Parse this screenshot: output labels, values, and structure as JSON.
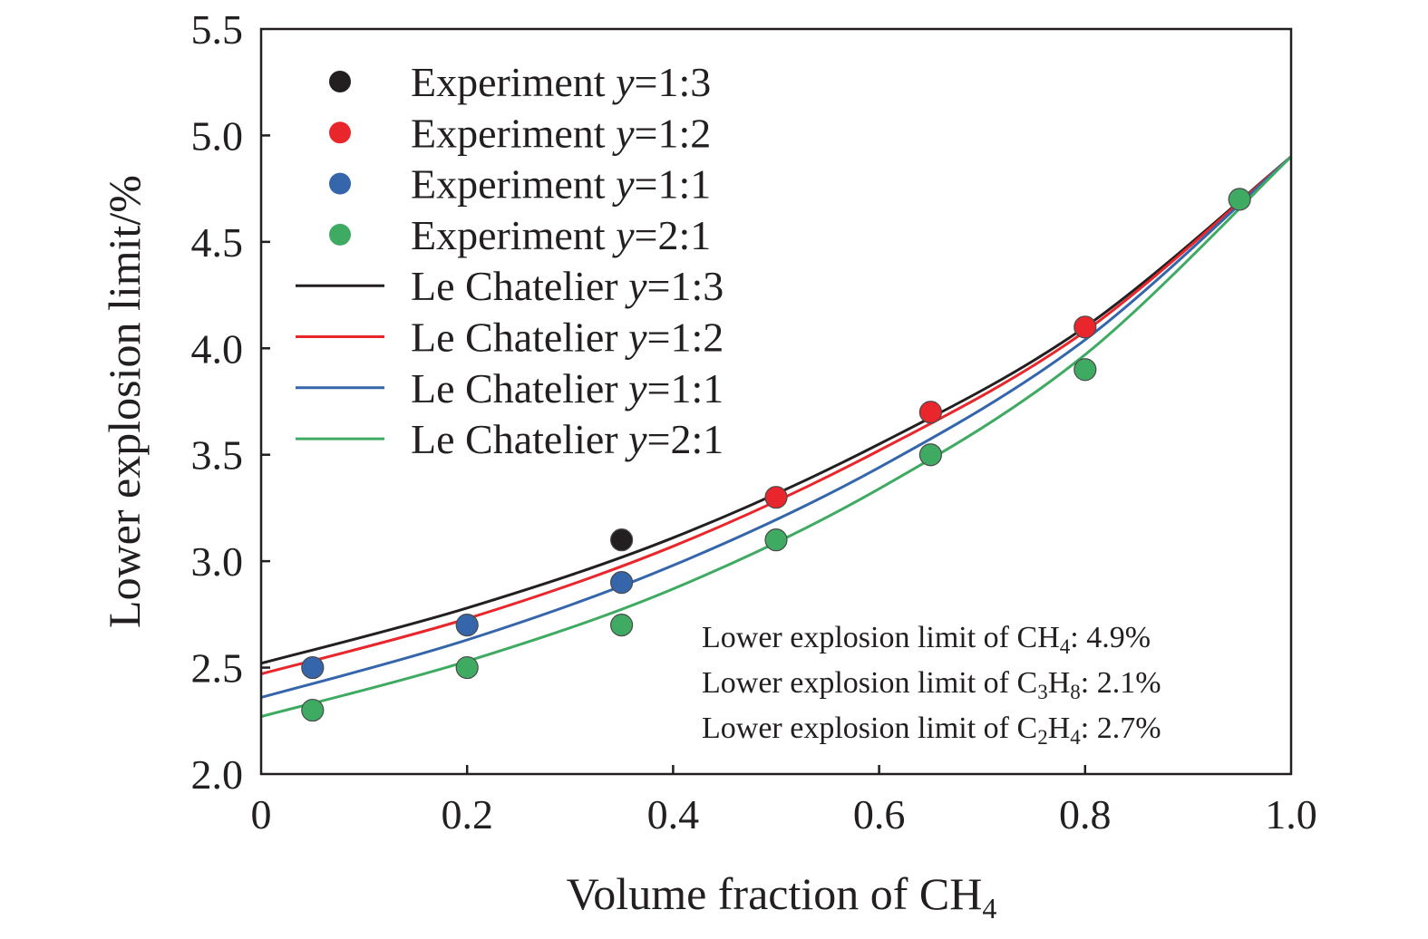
{
  "chart_data": {
    "type": "scatter",
    "xlabel": "Volume fraction of CH",
    "xlabel_sub": "4",
    "ylabel": "Lower explosion limit/%",
    "xlim": [
      0,
      1.0
    ],
    "ylim": [
      2.0,
      5.5
    ],
    "x_ticks": [
      {
        "value": 0,
        "label": "0"
      },
      {
        "value": 0.2,
        "label": "0.2"
      },
      {
        "value": 0.4,
        "label": "0.4"
      },
      {
        "value": 0.6,
        "label": "0.6"
      },
      {
        "value": 0.8,
        "label": "0.8"
      },
      {
        "value": 1.0,
        "label": "1.0"
      }
    ],
    "y_ticks": [
      {
        "value": 2.0,
        "label": "2.0"
      },
      {
        "value": 2.5,
        "label": "2.5"
      },
      {
        "value": 3.0,
        "label": "3.0"
      },
      {
        "value": 3.5,
        "label": "3.5"
      },
      {
        "value": 4.0,
        "label": "4.0"
      },
      {
        "value": 4.5,
        "label": "4.5"
      },
      {
        "value": 5.0,
        "label": "5.0"
      },
      {
        "value": 5.5,
        "label": "5.5"
      }
    ],
    "grid": false,
    "legend_position": "top-left",
    "experiment_series": [
      {
        "legend_prefix": "Experiment ",
        "legend_var": "y",
        "legend_ratio": "=1:3",
        "color": "#231f20",
        "points": [
          {
            "x": 0.35,
            "y": 3.1
          }
        ]
      },
      {
        "legend_prefix": "Experiment ",
        "legend_var": "y",
        "legend_ratio": "=1:2",
        "color": "#e8262b",
        "points": [
          {
            "x": 0.5,
            "y": 3.3
          },
          {
            "x": 0.65,
            "y": 3.7
          },
          {
            "x": 0.8,
            "y": 4.1
          }
        ]
      },
      {
        "legend_prefix": "Experiment ",
        "legend_var": "y",
        "legend_ratio": "=1:1",
        "color": "#3566ab",
        "points": [
          {
            "x": 0.05,
            "y": 2.5
          },
          {
            "x": 0.2,
            "y": 2.7
          },
          {
            "x": 0.35,
            "y": 2.9
          }
        ]
      },
      {
        "legend_prefix": "Experiment ",
        "legend_var": "y",
        "legend_ratio": "=2:1",
        "color": "#3fab62",
        "points": [
          {
            "x": 0.05,
            "y": 2.3
          },
          {
            "x": 0.2,
            "y": 2.5
          },
          {
            "x": 0.35,
            "y": 2.7
          },
          {
            "x": 0.5,
            "y": 3.1
          },
          {
            "x": 0.65,
            "y": 3.5
          },
          {
            "x": 0.8,
            "y": 3.9
          },
          {
            "x": 0.95,
            "y": 4.7
          }
        ]
      }
    ],
    "model_series": [
      {
        "legend_prefix": "Le Chatelier ",
        "legend_var": "y",
        "legend_ratio": "=1:3",
        "color": "#231f20",
        "line": [
          {
            "x": 0,
            "y": 2.52
          },
          {
            "x": 0.2,
            "y": 2.78
          },
          {
            "x": 0.4,
            "y": 3.11
          },
          {
            "x": 0.6,
            "y": 3.55
          },
          {
            "x": 0.8,
            "y": 4.1
          },
          {
            "x": 1.0,
            "y": 4.9
          }
        ]
      },
      {
        "legend_prefix": "Le Chatelier ",
        "legend_var": "y",
        "legend_ratio": "=1:2",
        "color": "#e8262b",
        "line": [
          {
            "x": 0,
            "y": 2.47
          },
          {
            "x": 0.2,
            "y": 2.73
          },
          {
            "x": 0.4,
            "y": 3.07
          },
          {
            "x": 0.6,
            "y": 3.52
          },
          {
            "x": 0.8,
            "y": 4.08
          },
          {
            "x": 1.0,
            "y": 4.9
          }
        ]
      },
      {
        "legend_prefix": "Le Chatelier ",
        "legend_var": "y",
        "legend_ratio": "=1:1",
        "color": "#3566ab",
        "line": [
          {
            "x": 0,
            "y": 2.36
          },
          {
            "x": 0.2,
            "y": 2.63
          },
          {
            "x": 0.4,
            "y": 2.98
          },
          {
            "x": 0.6,
            "y": 3.44
          },
          {
            "x": 0.8,
            "y": 4.04
          },
          {
            "x": 1.0,
            "y": 4.9
          }
        ]
      },
      {
        "legend_prefix": "Le Chatelier ",
        "legend_var": "y",
        "legend_ratio": "=2:1",
        "color": "#3fab62",
        "line": [
          {
            "x": 0,
            "y": 2.27
          },
          {
            "x": 0.2,
            "y": 2.53
          },
          {
            "x": 0.4,
            "y": 2.87
          },
          {
            "x": 0.6,
            "y": 3.34
          },
          {
            "x": 0.8,
            "y": 3.97
          },
          {
            "x": 1.0,
            "y": 4.9
          }
        ]
      }
    ],
    "annotations": [
      {
        "prefix": "Lower explosion limit of ",
        "formula": [
          {
            "t": "CH"
          },
          {
            "t": "4",
            "sub": true
          }
        ],
        "suffix": ": 4.9%"
      },
      {
        "prefix": "Lower explosion limit of ",
        "formula": [
          {
            "t": "C"
          },
          {
            "t": "3",
            "sub": true
          },
          {
            "t": "H"
          },
          {
            "t": "8",
            "sub": true
          }
        ],
        "suffix": ": 2.1%"
      },
      {
        "prefix": "Lower explosion limit of ",
        "formula": [
          {
            "t": "C"
          },
          {
            "t": "2",
            "sub": true
          },
          {
            "t": "H"
          },
          {
            "t": "4",
            "sub": true
          }
        ],
        "suffix": ": 2.7%"
      }
    ]
  }
}
